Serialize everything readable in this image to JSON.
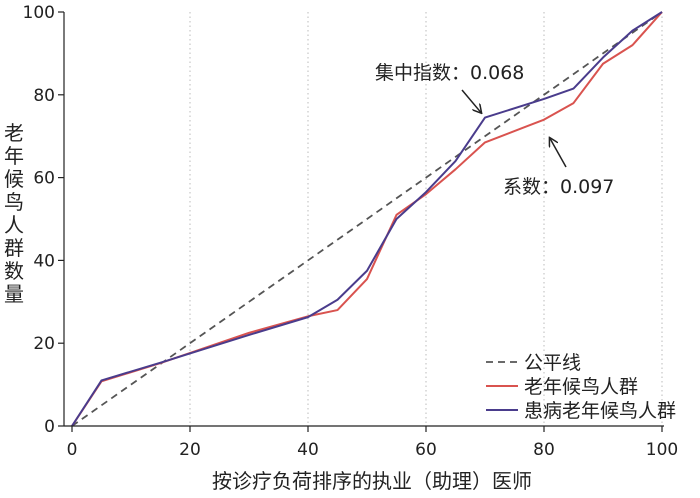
{
  "chart_data": {
    "type": "line",
    "title": "",
    "xlabel": "按诊疗负荷排序的执业（助理）医师",
    "ylabel": "老年候鸟人群数量",
    "xlim": [
      0,
      100
    ],
    "ylim": [
      0,
      100
    ],
    "x_ticks": [
      "0",
      "20",
      "40",
      "60",
      "80",
      "100"
    ],
    "y_ticks": [
      "0",
      "20",
      "40",
      "60",
      "80",
      "100"
    ],
    "grid": "vertical dotted at x ticks",
    "legend_position": "bottom-right",
    "series": [
      {
        "name": "公平线",
        "color": "#555555",
        "style": "dashed",
        "points": [
          [
            0,
            0
          ],
          [
            100,
            100
          ]
        ]
      },
      {
        "name": "老年候鸟人群",
        "color": "#d9534f",
        "style": "solid",
        "points": [
          [
            0,
            0
          ],
          [
            5,
            10.8
          ],
          [
            15,
            15.2
          ],
          [
            30,
            22.5
          ],
          [
            40,
            26.5
          ],
          [
            45,
            28
          ],
          [
            50,
            35.5
          ],
          [
            55,
            51
          ],
          [
            60,
            56
          ],
          [
            65,
            62
          ],
          [
            70,
            68.5
          ],
          [
            80,
            74
          ],
          [
            85,
            78
          ],
          [
            90,
            87.5
          ],
          [
            95,
            92
          ],
          [
            100,
            100
          ]
        ]
      },
      {
        "name": "患病老年候鸟人群",
        "color": "#4a3c8c",
        "style": "solid",
        "points": [
          [
            0,
            0
          ],
          [
            5,
            11
          ],
          [
            15,
            15.3
          ],
          [
            30,
            22
          ],
          [
            40,
            26.3
          ],
          [
            45,
            30.5
          ],
          [
            50,
            37.5
          ],
          [
            55,
            50
          ],
          [
            60,
            56.5
          ],
          [
            65,
            64
          ],
          [
            70,
            74.5
          ],
          [
            80,
            79
          ],
          [
            85,
            81.5
          ],
          [
            90,
            89
          ],
          [
            95,
            95.5
          ],
          [
            100,
            100
          ]
        ]
      }
    ],
    "annotations": [
      {
        "text": "集中指数：0.068",
        "arrow_to": [
          70,
          74.5
        ]
      },
      {
        "text": "系数：0.097",
        "arrow_to": [
          81,
          69.5
        ]
      }
    ]
  }
}
